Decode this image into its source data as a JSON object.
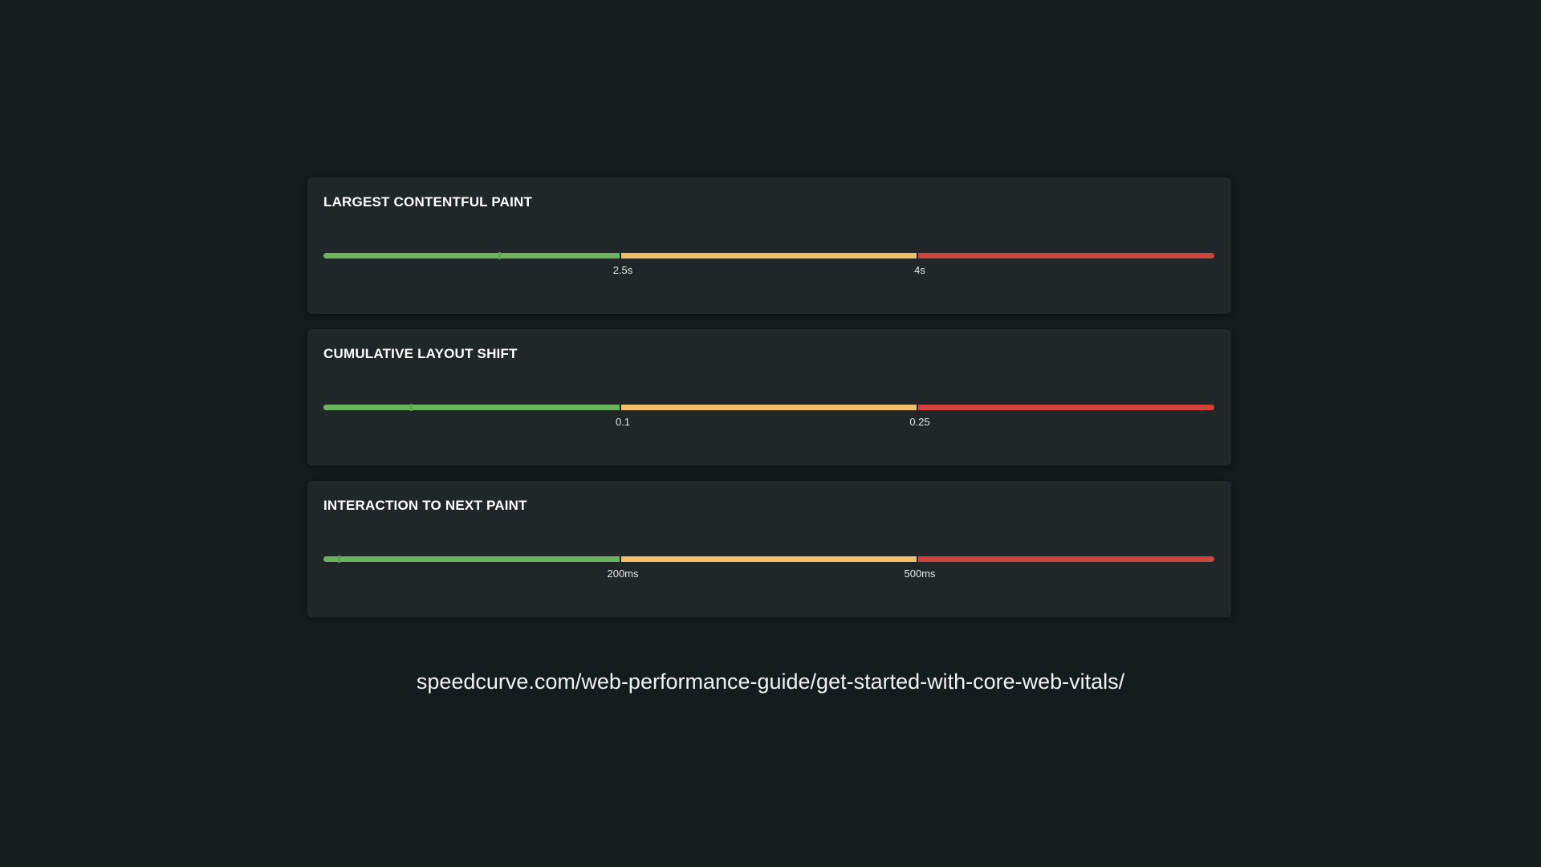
{
  "colors": {
    "background": "#141c1e",
    "card": "#212629",
    "good": "#6db25e",
    "needs_improvement": "#f0c069",
    "poor": "#d0433f"
  },
  "metrics": [
    {
      "title": "LARGEST CONTENTFUL PAINT",
      "threshold_labels": [
        "2.5s",
        "4s"
      ],
      "marker_fraction": 0.196
    },
    {
      "title": "CUMULATIVE LAYOUT SHIFT",
      "threshold_labels": [
        "0.1",
        "0.25"
      ],
      "marker_fraction": 0.097
    },
    {
      "title": "INTERACTION TO NEXT PAINT",
      "threshold_labels": [
        "200ms",
        "500ms"
      ],
      "marker_fraction": 0.016
    }
  ],
  "footer": {
    "url": "speedcurve.com/web-performance-guide/get-started-with-core-web-vitals/"
  }
}
